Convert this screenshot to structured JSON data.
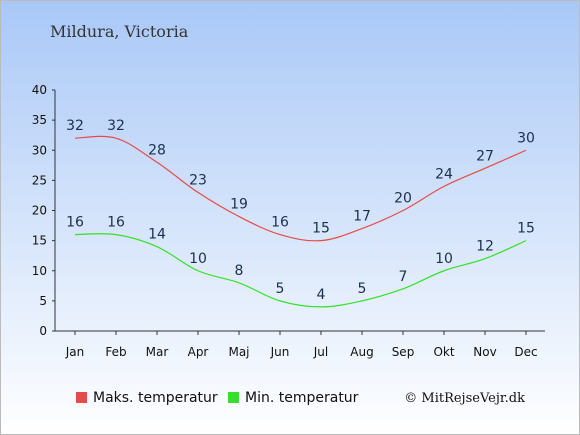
{
  "location": "Mildura, Victoria",
  "copyright": "© MitRejseVejr.dk",
  "chart_data": {
    "type": "line",
    "title": "",
    "xlabel": "",
    "ylabel": "",
    "categories": [
      "Jan",
      "Feb",
      "Mar",
      "Apr",
      "Maj",
      "Jun",
      "Jul",
      "Aug",
      "Sep",
      "Okt",
      "Nov",
      "Dec"
    ],
    "ylim": [
      0,
      40
    ],
    "yticks": [
      0,
      5,
      10,
      15,
      20,
      25,
      30,
      35,
      40
    ],
    "grid": false,
    "legend_position": "bottom-left",
    "series": [
      {
        "name": "Maks. temperatur",
        "color": "#e84a4a",
        "values": [
          32,
          32,
          28,
          23,
          19,
          16,
          15,
          17,
          20,
          24,
          27,
          30
        ]
      },
      {
        "name": "Min. temperatur",
        "color": "#34e02a",
        "values": [
          16,
          16,
          14,
          10,
          8,
          5,
          4,
          5,
          7,
          10,
          12,
          15
        ]
      }
    ]
  }
}
